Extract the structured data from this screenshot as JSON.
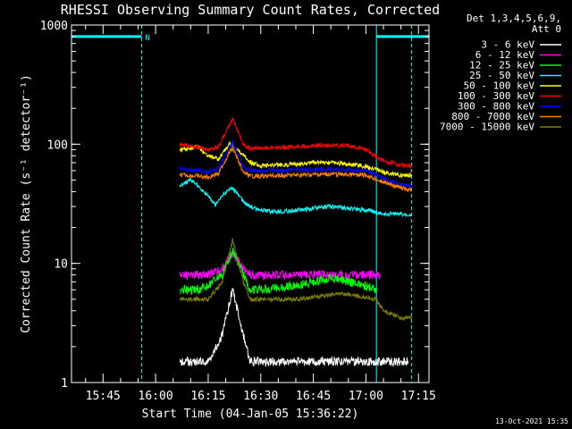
{
  "chart_data": {
    "type": "line",
    "title": "RHESSI Observing Summary Count Rates, Corrected",
    "xlabel": "Start Time (04-Jan-05 15:36:22)",
    "ylabel": "Corrected Count Rate (s⁻¹ detector⁻¹)",
    "y_scale": "log",
    "ylim": [
      1,
      1000
    ],
    "y_ticks": [
      "1",
      "10",
      "100",
      "1000"
    ],
    "xlim": [
      "15:36",
      "17:18"
    ],
    "x_ticks": [
      "15:45",
      "16:00",
      "16:15",
      "16:30",
      "16:45",
      "17:00",
      "17:15"
    ],
    "legend_header": [
      "Det 1,3,4,5,6,9,",
      "Att 0"
    ],
    "legend_placement": "right",
    "flag": {
      "label": "N",
      "intervals": [
        [
          "15:36",
          "15:56"
        ],
        [
          "17:03",
          "17:18"
        ]
      ],
      "level": 800
    },
    "marker_lines": [
      "15:56",
      "17:03",
      "17:13"
    ],
    "series": [
      {
        "name": "3 - 6 keV",
        "color": "#ffffff",
        "x": [
          "16:07",
          "16:15",
          "16:19",
          "16:21",
          "16:22",
          "16:23",
          "16:25",
          "16:27",
          "16:30",
          "16:45",
          "17:00",
          "17:05",
          "17:12"
        ],
        "y": [
          1.5,
          1.5,
          2.5,
          4.5,
          6,
          4.5,
          2.5,
          1.5,
          1.5,
          1.5,
          1.5,
          1.5,
          1.5
        ]
      },
      {
        "name": "6 - 12 keV",
        "color": "#ff00ff",
        "x": [
          "16:07",
          "16:12",
          "16:15",
          "16:19",
          "16:21",
          "16:22",
          "16:23",
          "16:25",
          "16:27",
          "16:30",
          "16:40",
          "16:45",
          "16:50",
          "16:55",
          "17:00",
          "17:04"
        ],
        "y": [
          8,
          8,
          8,
          9,
          11,
          12,
          11,
          9,
          8,
          8,
          8,
          8,
          8,
          8,
          8,
          8
        ]
      },
      {
        "name": "12 - 25 keV",
        "color": "#00ff00",
        "x": [
          "16:07",
          "16:12",
          "16:15",
          "16:19",
          "16:21",
          "16:22",
          "16:23",
          "16:25",
          "16:27",
          "16:30",
          "16:40",
          "16:45",
          "16:50",
          "16:55",
          "17:00",
          "17:03"
        ],
        "y": [
          6,
          6,
          6.5,
          8,
          11,
          13,
          11,
          8,
          6,
          6,
          6.5,
          7,
          7.5,
          7,
          6.5,
          6
        ]
      },
      {
        "name": "25 - 50 keV",
        "color": "#00ffff",
        "x": [
          "16:07",
          "16:10",
          "16:12",
          "16:15",
          "16:17",
          "16:19",
          "16:21",
          "16:22",
          "16:23",
          "16:25",
          "16:27",
          "16:30",
          "16:35",
          "16:40",
          "16:45",
          "16:50",
          "16:55",
          "17:00",
          "17:05",
          "17:10",
          "17:13"
        ],
        "y": [
          45,
          50,
          45,
          37,
          31,
          37,
          42,
          42,
          40,
          33,
          30,
          28,
          27,
          28,
          29,
          30,
          29,
          28,
          26,
          26,
          26
        ]
      },
      {
        "name": "50 - 100 keV",
        "color": "#ffff00",
        "x": [
          "16:07",
          "16:12",
          "16:15",
          "16:18",
          "16:21",
          "16:22",
          "16:23",
          "16:25",
          "16:27",
          "16:30",
          "16:35",
          "16:40",
          "16:45",
          "16:50",
          "16:55",
          "17:00",
          "17:05",
          "17:10",
          "17:13"
        ],
        "y": [
          90,
          95,
          80,
          75,
          100,
          100,
          90,
          82,
          70,
          66,
          67,
          68,
          70,
          70,
          68,
          65,
          58,
          55,
          55
        ]
      },
      {
        "name": "100 - 300 keV",
        "color": "#ff0000",
        "x": [
          "16:07",
          "16:12",
          "16:15",
          "16:18",
          "16:21",
          "16:22",
          "16:23",
          "16:25",
          "16:27",
          "16:30",
          "16:35",
          "16:40",
          "16:45",
          "16:50",
          "16:55",
          "17:00",
          "17:05",
          "17:10",
          "17:13"
        ],
        "y": [
          100,
          95,
          90,
          95,
          145,
          160,
          140,
          100,
          92,
          93,
          94,
          95,
          97,
          98,
          97,
          90,
          72,
          67,
          65
        ]
      },
      {
        "name": "300 - 800 keV",
        "color": "#0000ff",
        "x": [
          "16:07",
          "16:12",
          "16:15",
          "16:18",
          "16:21",
          "16:22",
          "16:23",
          "16:25",
          "16:27",
          "16:30",
          "16:40",
          "16:50",
          "17:00",
          "17:05",
          "17:10",
          "17:13"
        ],
        "y": [
          62,
          60,
          58,
          63,
          95,
          103,
          90,
          65,
          60,
          60,
          61,
          62,
          60,
          52,
          46,
          44
        ]
      },
      {
        "name": "800 - 7000 keV",
        "color": "#ff8000",
        "x": [
          "16:07",
          "16:12",
          "16:15",
          "16:18",
          "16:21",
          "16:22",
          "16:23",
          "16:25",
          "16:27",
          "16:30",
          "16:40",
          "16:50",
          "17:00",
          "17:05",
          "17:10",
          "17:13"
        ],
        "y": [
          55,
          54,
          53,
          57,
          85,
          92,
          80,
          58,
          54,
          54,
          55,
          56,
          55,
          48,
          43,
          41
        ]
      },
      {
        "name": "7000 - 15000 keV",
        "color": "#808000",
        "x": [
          "16:07",
          "16:12",
          "16:15",
          "16:19",
          "16:21",
          "16:22",
          "16:23",
          "16:25",
          "16:27",
          "16:30",
          "16:40",
          "16:45",
          "16:50",
          "16:55",
          "17:00",
          "17:03",
          "17:05",
          "17:10",
          "17:13"
        ],
        "y": [
          5,
          5,
          5,
          7,
          12,
          16,
          12,
          7,
          5,
          5,
          5,
          5.2,
          5.5,
          5.5,
          5.2,
          5,
          4,
          3.5,
          3.5
        ]
      }
    ]
  },
  "footer": {
    "timestamp": "13-Oct-2021 15:35"
  }
}
